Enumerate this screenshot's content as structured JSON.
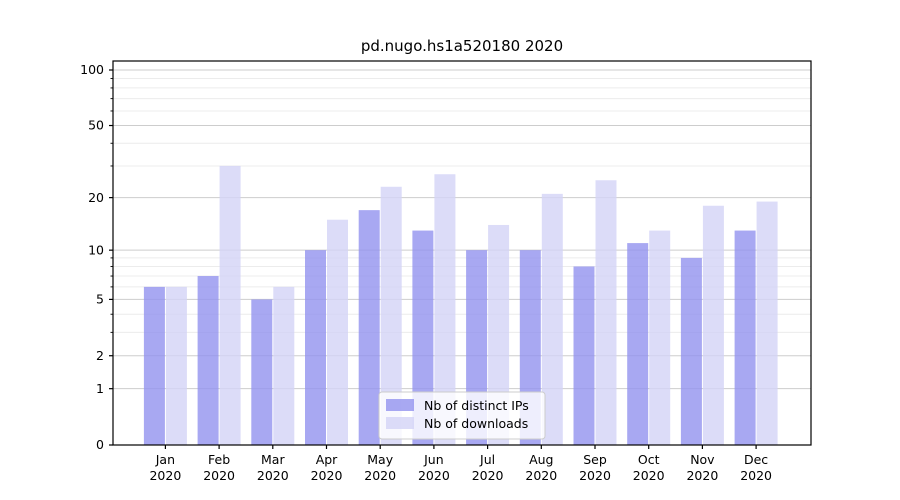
{
  "window": {
    "title": "pd.nugo.hs1a520180 2020"
  },
  "chart_data": {
    "type": "bar",
    "title": "pd.nugo.hs1a520180 2020",
    "categories": [
      "Jan",
      "Feb",
      "Mar",
      "Apr",
      "May",
      "Jun",
      "Jul",
      "Aug",
      "Sep",
      "Oct",
      "Nov",
      "Dec"
    ],
    "x_tick_second_line": "2020",
    "series": [
      {
        "name": "Nb of distinct IPs",
        "color": "#9292ef",
        "values": [
          6,
          7,
          5,
          10,
          17,
          13,
          10,
          10,
          8,
          11,
          9,
          13
        ]
      },
      {
        "name": "Nb of downloads",
        "color": "#d3d3f6",
        "values": [
          6,
          30,
          6,
          15,
          23,
          27,
          14,
          21,
          25,
          13,
          18,
          19
        ]
      }
    ],
    "xlabel": "",
    "ylabel": "",
    "yscale": "log1p",
    "ylim": [
      0,
      100
    ],
    "y_major_ticks": [
      0,
      1,
      2,
      5,
      10,
      20,
      50,
      100
    ],
    "y_minor_gridlines": [
      3,
      4,
      6,
      7,
      8,
      9,
      30,
      40,
      60,
      70,
      80,
      90
    ],
    "grid": "on",
    "legend": {
      "position": "lower-center",
      "labels": [
        "Nb of distinct IPs",
        "Nb of downloads"
      ]
    }
  },
  "colors": {
    "background": "#ffffff",
    "axis": "#000000",
    "grid_major": "#cdcdcd",
    "grid_minor": "#ececec",
    "legend_border": "#cccccc",
    "legend_background": "rgba(255,255,255,0.8)",
    "bar_dark": "#9292ef",
    "bar_light": "#d3d3f6"
  }
}
